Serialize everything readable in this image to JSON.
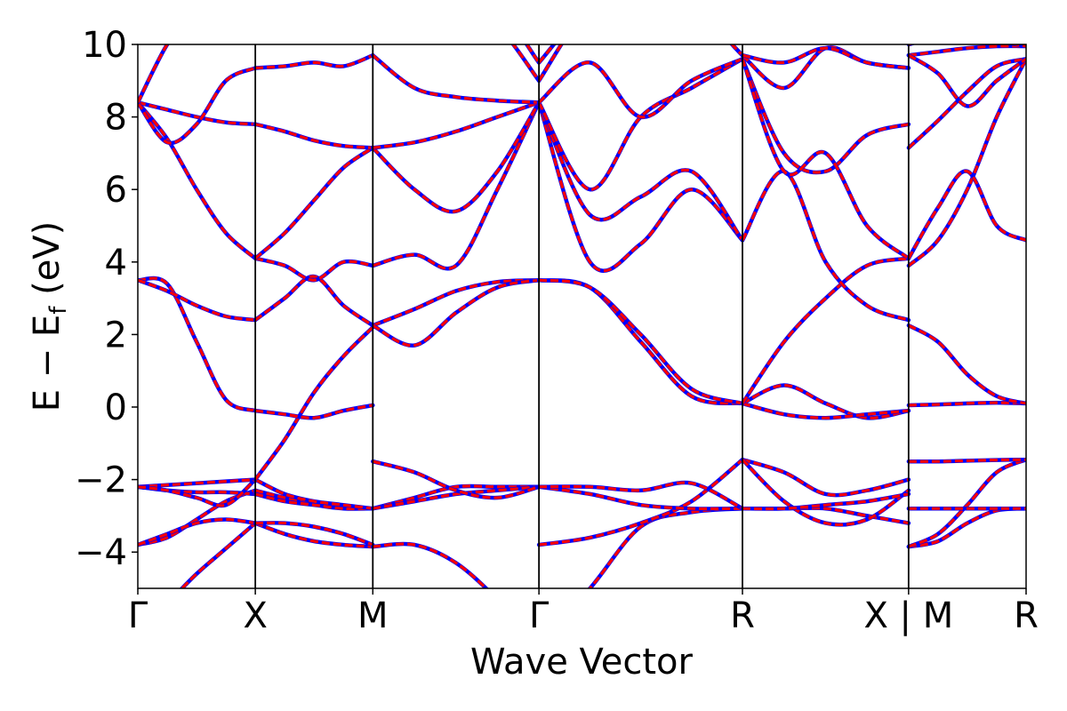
{
  "chart_data": {
    "type": "line",
    "xlabel": "Wave Vector",
    "ylabel": "E − E",
    "ylabel_sub": "f",
    "ylabel_unit": " (eV)",
    "ylim": [
      -5,
      10
    ],
    "yticks": [
      -4,
      -2,
      0,
      2,
      4,
      6,
      8,
      10
    ],
    "ytick_labels": [
      "−4",
      "−2",
      "0",
      "2",
      "4",
      "6",
      "8",
      "10"
    ],
    "kpath": [
      {
        "label": "Γ",
        "x": 0.0
      },
      {
        "label": "X",
        "x": 0.5
      },
      {
        "label": "M",
        "x": 1.0
      },
      {
        "label": "Γ",
        "x": 1.707
      },
      {
        "label": "R",
        "x": 2.573
      },
      {
        "label": "X | M",
        "x": 3.28
      },
      {
        "label": "R",
        "x": 3.78
      }
    ],
    "xlim": [
      0,
      3.78
    ],
    "grid": false,
    "colors": {
      "red": "#ff0000",
      "blue": "#0000ff",
      "axes": "#000000"
    },
    "segments": [
      {
        "name": "Γ-X",
        "x": [
          0,
          0.125,
          0.25,
          0.375,
          0.5
        ],
        "bands": [
          [
            -6.0,
            -5.4,
            -4.6,
            -3.9,
            -3.2
          ],
          [
            -3.8,
            -3.6,
            -3.1,
            -2.6,
            -2.3
          ],
          [
            -3.8,
            -3.5,
            -3.2,
            -3.1,
            -3.2
          ],
          [
            -2.2,
            -2.3,
            -2.35,
            -2.35,
            -2.4
          ],
          [
            -2.2,
            -2.15,
            -2.1,
            -2.05,
            -2.0
          ],
          [
            -2.2,
            -2.3,
            -2.5,
            -2.7,
            -2.0
          ],
          [
            3.5,
            3.4,
            1.8,
            0.2,
            -0.1
          ],
          [
            3.5,
            3.2,
            2.8,
            2.5,
            2.4
          ],
          [
            8.4,
            7.4,
            6.0,
            4.8,
            4.1
          ],
          [
            8.4,
            8.2,
            8.0,
            7.85,
            7.8
          ],
          [
            8.4,
            7.3,
            7.8,
            9.0,
            9.35
          ],
          [
            8.4,
            10.0,
            11.0,
            11.0,
            11.0
          ]
        ]
      },
      {
        "name": "X-M",
        "x": [
          0.5,
          0.625,
          0.75,
          0.875,
          1.0
        ],
        "bands": [
          [
            -3.2,
            -3.5,
            -3.7,
            -3.8,
            -3.85
          ],
          [
            -2.3,
            -2.5,
            -2.65,
            -2.75,
            -2.8
          ],
          [
            -3.2,
            -3.2,
            -3.3,
            -3.5,
            -3.8
          ],
          [
            -2.4,
            -2.6,
            -2.7,
            -2.8,
            -2.8
          ],
          [
            -2.0,
            -2.4,
            -2.6,
            -2.7,
            -2.8
          ],
          [
            -2.0,
            -0.9,
            0.4,
            1.4,
            2.2
          ],
          [
            -0.1,
            -0.2,
            -0.3,
            -0.1,
            0.05
          ],
          [
            2.4,
            3.0,
            3.6,
            2.8,
            2.25
          ],
          [
            4.1,
            3.9,
            3.5,
            4.0,
            3.9
          ],
          [
            4.1,
            4.8,
            5.7,
            6.6,
            7.15
          ],
          [
            7.8,
            7.6,
            7.35,
            7.2,
            7.15
          ],
          [
            9.35,
            9.4,
            9.5,
            9.4,
            9.7
          ]
        ]
      },
      {
        "name": "M-Γ",
        "x": [
          1.0,
          1.177,
          1.354,
          1.53,
          1.707
        ],
        "bands": [
          [
            -3.85,
            -3.8,
            -4.3,
            -5.3,
            -6.5
          ],
          [
            -2.8,
            -2.5,
            -2.2,
            -2.2,
            -2.2
          ],
          [
            -2.8,
            -2.6,
            -2.4,
            -2.3,
            -2.2
          ],
          [
            -1.5,
            -1.8,
            -2.3,
            -2.5,
            -2.2
          ],
          [
            2.25,
            2.7,
            3.2,
            3.45,
            3.5
          ],
          [
            2.25,
            1.7,
            2.6,
            3.3,
            3.5
          ],
          [
            3.9,
            4.2,
            3.9,
            6.0,
            8.4
          ],
          [
            7.15,
            6.0,
            5.4,
            6.5,
            8.4
          ],
          [
            7.15,
            7.3,
            7.6,
            8.0,
            8.4
          ],
          [
            9.7,
            8.8,
            8.55,
            8.45,
            8.4
          ],
          [
            11.0,
            11.0,
            11.0,
            10.5,
            9.0
          ],
          [
            11.0,
            11.0,
            11.0,
            11.0,
            9.5
          ]
        ]
      },
      {
        "name": "Γ-R",
        "x": [
          1.707,
          1.924,
          2.14,
          2.356,
          2.573
        ],
        "bands": [
          [
            -6.5,
            -5.0,
            -3.3,
            -2.9,
            -2.8
          ],
          [
            -3.8,
            -3.6,
            -3.2,
            -2.6,
            -1.45
          ],
          [
            -2.2,
            -2.4,
            -2.7,
            -2.8,
            -2.8
          ],
          [
            -2.2,
            -2.2,
            -2.3,
            -2.1,
            -2.8
          ],
          [
            3.5,
            3.3,
            1.8,
            0.3,
            0.1
          ],
          [
            3.5,
            3.3,
            2.0,
            0.5,
            0.1
          ],
          [
            8.4,
            4.0,
            4.5,
            6.0,
            4.6
          ],
          [
            8.4,
            5.3,
            5.8,
            6.5,
            4.6
          ],
          [
            8.4,
            6.0,
            8.0,
            8.8,
            9.6
          ],
          [
            8.4,
            9.5,
            8.0,
            9.0,
            9.6
          ],
          [
            9.0,
            11.0,
            11.0,
            11.0,
            9.7
          ],
          [
            9.5,
            11.0,
            11.0,
            11.0,
            9.7
          ]
        ]
      },
      {
        "name": "R-X",
        "x": [
          2.573,
          2.75,
          2.927,
          3.103,
          3.28
        ],
        "bands": [
          [
            -2.8,
            -2.8,
            -2.8,
            -3.0,
            -3.2
          ],
          [
            -1.45,
            -1.8,
            -2.4,
            -2.3,
            -2.0
          ],
          [
            -1.45,
            -2.6,
            -3.2,
            -3.1,
            -2.3
          ],
          [
            -2.8,
            -2.8,
            -2.7,
            -2.6,
            -2.4
          ],
          [
            0.1,
            0.6,
            0.1,
            -0.3,
            -0.1
          ],
          [
            0.1,
            -0.2,
            -0.3,
            -0.2,
            -0.1
          ],
          [
            0.1,
            1.8,
            3.0,
            3.9,
            4.1
          ],
          [
            4.6,
            6.5,
            4.0,
            2.8,
            2.4
          ],
          [
            9.6,
            7.0,
            6.5,
            7.5,
            7.8
          ],
          [
            9.6,
            6.5,
            7.0,
            5.0,
            4.1
          ],
          [
            9.7,
            8.8,
            9.9,
            9.5,
            9.35
          ],
          [
            9.7,
            9.5,
            9.9,
            9.5,
            9.35
          ]
        ]
      },
      {
        "name": "M-R",
        "x": [
          3.28,
          3.405,
          3.53,
          3.655,
          3.78
        ],
        "bands": [
          [
            -3.85,
            -3.7,
            -3.2,
            -2.85,
            -2.8
          ],
          [
            -3.85,
            -3.5,
            -2.7,
            -1.8,
            -1.45
          ],
          [
            -2.8,
            -2.8,
            -2.8,
            -2.8,
            -2.8
          ],
          [
            -1.5,
            -1.5,
            -1.48,
            -1.46,
            -1.45
          ],
          [
            0.05,
            0.07,
            0.1,
            0.12,
            0.1
          ],
          [
            2.25,
            1.8,
            0.9,
            0.3,
            0.1
          ],
          [
            3.9,
            4.6,
            6.0,
            8.0,
            9.6
          ],
          [
            7.15,
            7.9,
            8.7,
            9.4,
            9.6
          ],
          [
            4.1,
            5.5,
            6.5,
            5.0,
            4.6
          ],
          [
            9.7,
            9.8,
            9.9,
            9.95,
            9.95
          ],
          [
            9.7,
            9.2,
            8.3,
            9.0,
            9.6
          ],
          [
            10.0,
            10.2,
            10.2,
            10.1,
            9.95
          ]
        ]
      }
    ]
  }
}
